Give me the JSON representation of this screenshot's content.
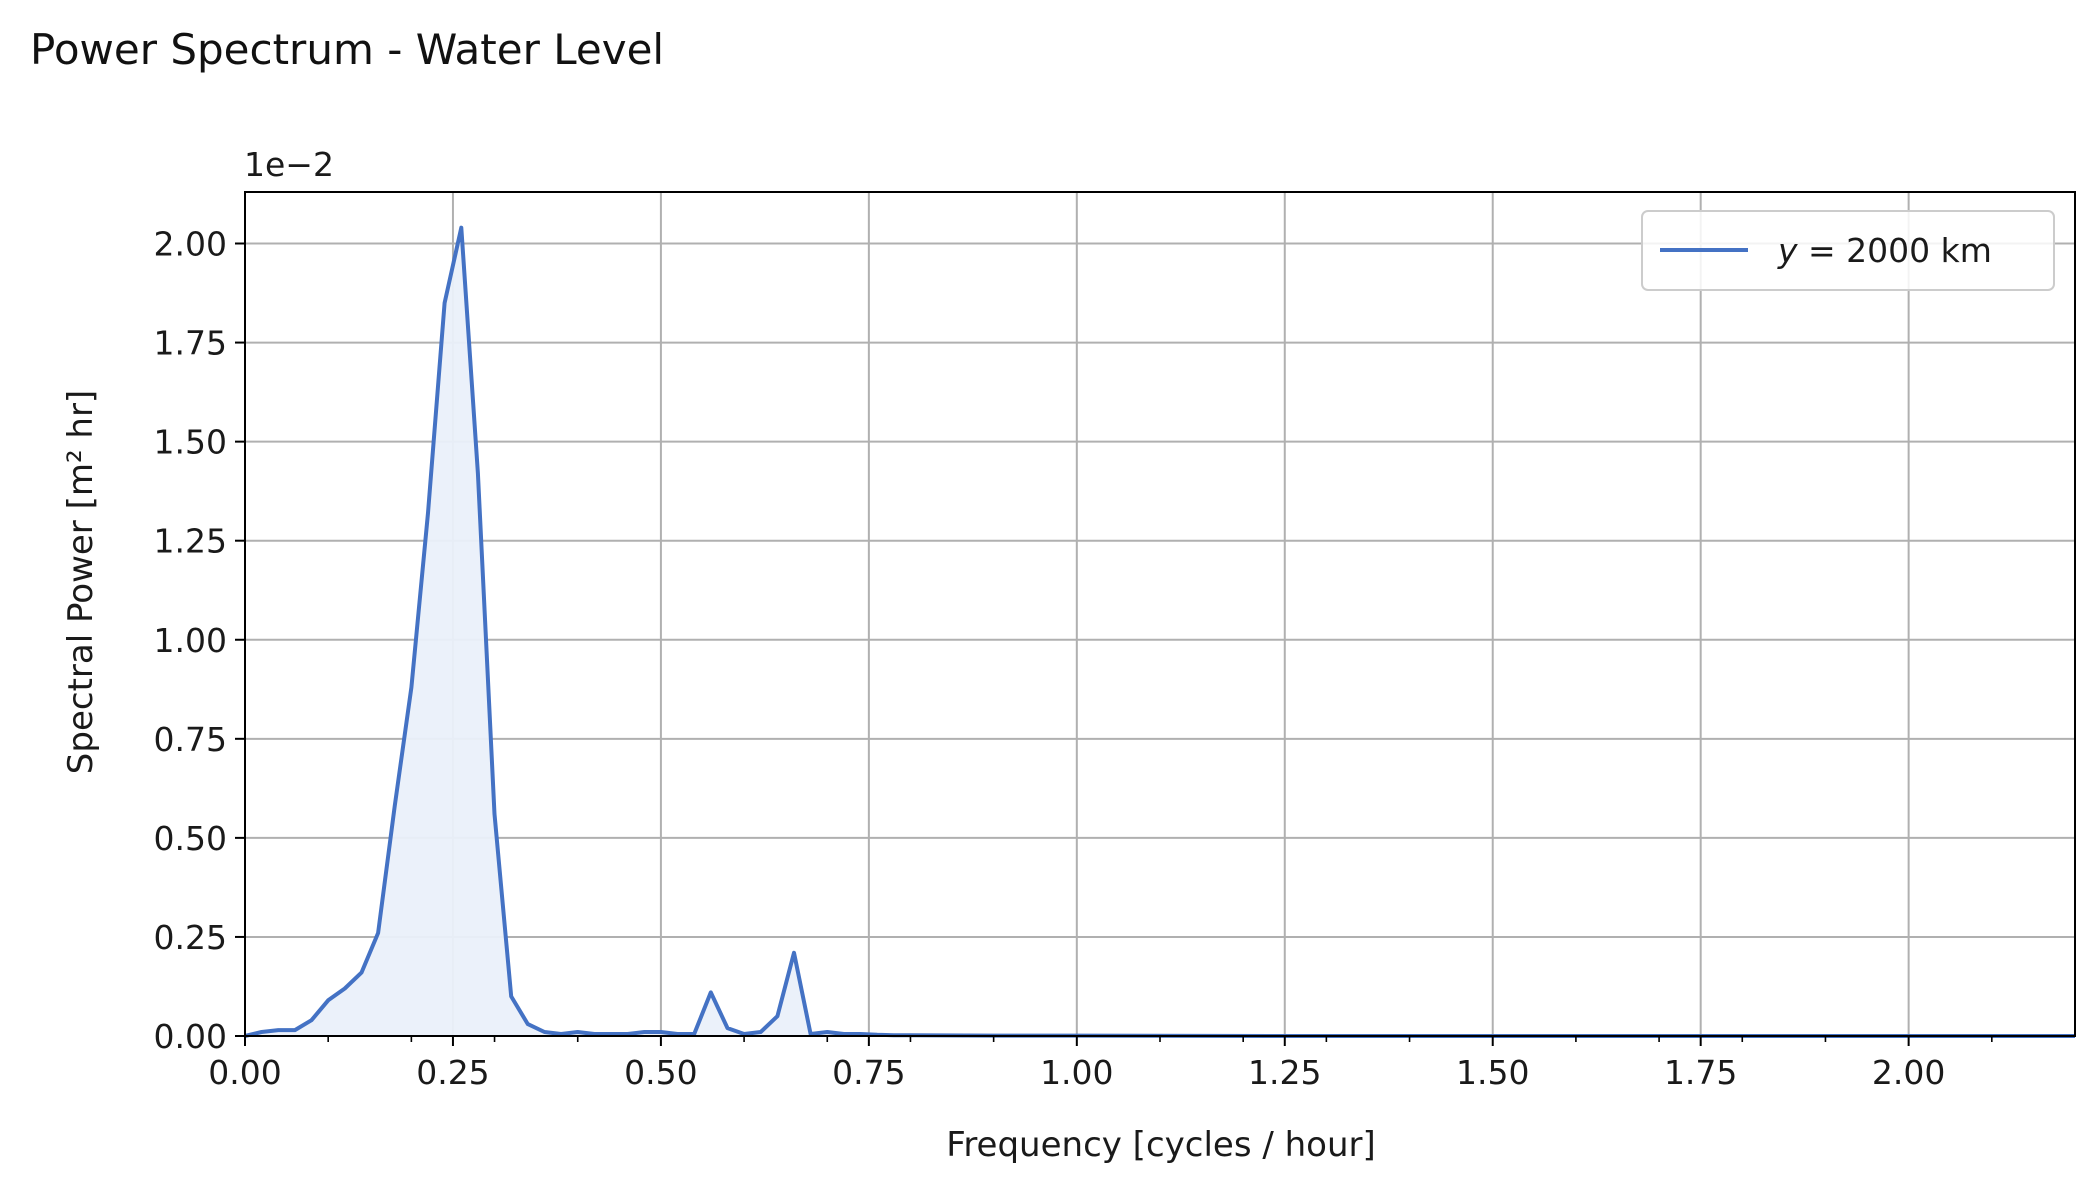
{
  "chart_data": {
    "type": "area",
    "title": "Power Spectrum - Water Level",
    "xlabel": "Frequency [cycles / hour]",
    "ylabel": "Spectral Power [m² hr]",
    "offset_label": "1e−2",
    "xlim": [
      0,
      2.2
    ],
    "ylim": [
      0,
      2.13
    ],
    "x_ticks": [
      {
        "value": 0.0,
        "label": "0.00"
      },
      {
        "value": 0.25,
        "label": "0.25"
      },
      {
        "value": 0.5,
        "label": "0.50"
      },
      {
        "value": 0.75,
        "label": "0.75"
      },
      {
        "value": 1.0,
        "label": "1.00"
      },
      {
        "value": 1.25,
        "label": "1.25"
      },
      {
        "value": 1.5,
        "label": "1.50"
      },
      {
        "value": 1.75,
        "label": "1.75"
      },
      {
        "value": 2.0,
        "label": "2.00"
      }
    ],
    "x_minor_ticks": [
      0.1,
      0.2,
      0.3,
      0.4,
      0.6,
      0.7,
      0.8,
      0.9,
      1.1,
      1.2,
      1.3,
      1.4,
      1.6,
      1.7,
      1.8,
      1.9,
      2.1
    ],
    "y_ticks": [
      {
        "value": 0.0,
        "label": "0.00"
      },
      {
        "value": 0.25,
        "label": "0.25"
      },
      {
        "value": 0.5,
        "label": "0.50"
      },
      {
        "value": 0.75,
        "label": "0.75"
      },
      {
        "value": 1.0,
        "label": "1.00"
      },
      {
        "value": 1.25,
        "label": "1.25"
      },
      {
        "value": 1.5,
        "label": "1.50"
      },
      {
        "value": 1.75,
        "label": "1.75"
      },
      {
        "value": 2.0,
        "label": "2.00"
      }
    ],
    "grid": true,
    "legend_position": "top-right",
    "series": [
      {
        "name_italic": "y",
        "name_rest": " = 2000 km",
        "color": "#4472c4",
        "fill_color": "#eaf0fa",
        "x": [
          0.0,
          0.02,
          0.04,
          0.06,
          0.08,
          0.1,
          0.12,
          0.14,
          0.16,
          0.18,
          0.2,
          0.22,
          0.24,
          0.26,
          0.28,
          0.3,
          0.32,
          0.34,
          0.36,
          0.38,
          0.4,
          0.42,
          0.44,
          0.46,
          0.48,
          0.5,
          0.52,
          0.54,
          0.56,
          0.58,
          0.6,
          0.62,
          0.64,
          0.66,
          0.68,
          0.7,
          0.72,
          0.74,
          0.76,
          0.78,
          0.8,
          0.9,
          1.0,
          1.25,
          1.5,
          1.75,
          2.0,
          2.2
        ],
        "y": [
          0.0,
          0.01,
          0.015,
          0.015,
          0.04,
          0.09,
          0.12,
          0.16,
          0.26,
          0.58,
          0.88,
          1.32,
          1.85,
          2.04,
          1.42,
          0.56,
          0.1,
          0.03,
          0.01,
          0.005,
          0.01,
          0.005,
          0.005,
          0.005,
          0.01,
          0.01,
          0.005,
          0.005,
          0.11,
          0.02,
          0.005,
          0.01,
          0.05,
          0.21,
          0.005,
          0.01,
          0.005,
          0.005,
          0.003,
          0.002,
          0.002,
          0.001,
          0.001,
          0.0,
          0.0,
          0.0,
          0.0,
          0.0
        ]
      }
    ]
  }
}
